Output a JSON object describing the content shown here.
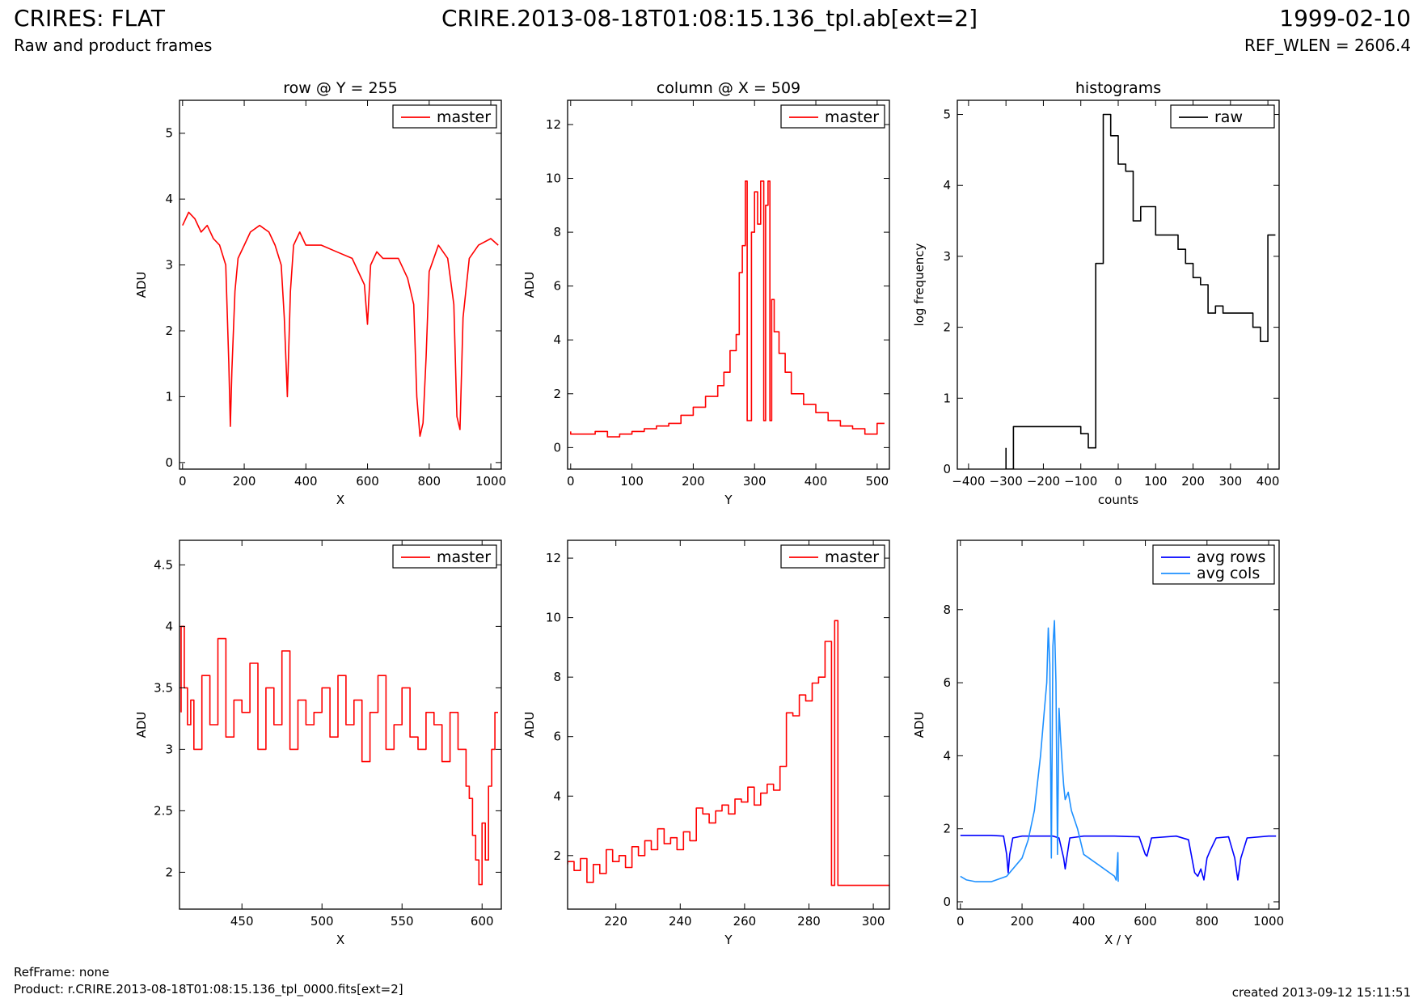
{
  "header": {
    "left_title": "CRIRES: FLAT",
    "subtitle": "Raw and product frames",
    "center_title": "CRIRE.2013-08-18T01:08:15.136_tpl.ab[ext=2]",
    "right_title": "1999-02-10",
    "ref_wlen": "REF_WLEN = 2606.4"
  },
  "footer": {
    "ref_frame": "RefFrame: none",
    "product": "Product: r.CRIRE.2013-08-18T01:08:15.136_tpl_0000.fits[ext=2]",
    "created": "created 2013-09-12 15:11:51"
  },
  "chart_data": [
    {
      "type": "line",
      "title": "row @ Y = 255",
      "xlabel": "X",
      "ylabel": "ADU",
      "xlim": [
        -10,
        1034
      ],
      "ylim": [
        -0.1,
        5.5
      ],
      "xticks": [
        0,
        200,
        400,
        600,
        800,
        1000
      ],
      "yticks": [
        0,
        1,
        2,
        3,
        4,
        5
      ],
      "legend": "top-right",
      "series": [
        {
          "name": "master",
          "color": "#ff0000",
          "style": "line",
          "x": [
            0,
            20,
            40,
            60,
            80,
            100,
            120,
            140,
            150,
            155,
            160,
            170,
            180,
            200,
            220,
            250,
            280,
            300,
            320,
            330,
            340,
            350,
            360,
            380,
            400,
            450,
            500,
            550,
            590,
            600,
            610,
            630,
            650,
            700,
            730,
            750,
            760,
            770,
            780,
            790,
            800,
            830,
            860,
            880,
            890,
            900,
            910,
            930,
            960,
            1000,
            1024
          ],
          "y": [
            3.6,
            3.8,
            3.7,
            3.5,
            3.6,
            3.4,
            3.3,
            3.0,
            1.5,
            0.55,
            1.4,
            2.6,
            3.1,
            3.3,
            3.5,
            3.6,
            3.5,
            3.3,
            3.0,
            2.2,
            1.0,
            2.6,
            3.3,
            3.5,
            3.3,
            3.3,
            3.2,
            3.1,
            2.7,
            2.1,
            3.0,
            3.2,
            3.1,
            3.1,
            2.8,
            2.4,
            1.0,
            0.4,
            0.6,
            1.6,
            2.9,
            3.3,
            3.1,
            2.4,
            0.7,
            0.5,
            2.2,
            3.1,
            3.3,
            3.4,
            3.3
          ]
        }
      ]
    },
    {
      "type": "line",
      "title": "column @ X = 509",
      "xlabel": "Y",
      "ylabel": "ADU",
      "xlim": [
        -5,
        520
      ],
      "ylim": [
        -0.8,
        12.9
      ],
      "xticks": [
        0,
        100,
        200,
        300,
        400,
        500
      ],
      "yticks": [
        0,
        2,
        4,
        6,
        8,
        10,
        12
      ],
      "legend": "top-right",
      "series": [
        {
          "name": "master",
          "color": "#ff0000",
          "style": "step",
          "x": [
            0,
            20,
            40,
            60,
            80,
            100,
            120,
            140,
            160,
            180,
            200,
            220,
            240,
            250,
            260,
            270,
            275,
            280,
            285,
            288,
            290,
            295,
            300,
            305,
            310,
            315,
            318,
            322,
            325,
            328,
            332,
            340,
            350,
            360,
            380,
            400,
            420,
            440,
            460,
            480,
            500,
            512
          ],
          "y": [
            0.6,
            0.5,
            0.5,
            0.6,
            0.4,
            0.5,
            0.6,
            0.7,
            0.8,
            0.9,
            1.2,
            1.5,
            1.9,
            2.3,
            2.8,
            3.6,
            4.2,
            6.5,
            7.5,
            9.9,
            1.0,
            1.0,
            8.0,
            9.5,
            8.3,
            9.9,
            1.0,
            9.0,
            9.9,
            1.0,
            5.5,
            4.3,
            3.5,
            2.8,
            2.0,
            1.6,
            1.3,
            1.0,
            0.8,
            0.7,
            0.5,
            0.9
          ]
        }
      ]
    },
    {
      "type": "line",
      "title": "histograms",
      "xlabel": "counts",
      "ylabel": "log frequency",
      "xlim": [
        -430,
        430
      ],
      "ylim": [
        0,
        5.2
      ],
      "xticks": [
        -400,
        -300,
        -200,
        -100,
        0,
        100,
        200,
        300,
        400
      ],
      "yticks": [
        0,
        1,
        2,
        3,
        4,
        5
      ],
      "legend": "top-right",
      "series": [
        {
          "name": "raw",
          "color": "#000000",
          "style": "step",
          "x": [
            -300,
            -280,
            -100,
            -80,
            -60,
            -40,
            -20,
            0,
            20,
            40,
            60,
            80,
            100,
            140,
            160,
            180,
            200,
            220,
            240,
            260,
            280,
            300,
            340,
            360,
            380,
            400,
            420
          ],
          "y": [
            0.3,
            0,
            0.6,
            0.5,
            0.3,
            2.9,
            5.0,
            4.7,
            4.3,
            4.2,
            3.5,
            3.7,
            3.7,
            3.3,
            3.3,
            3.1,
            2.9,
            2.7,
            2.6,
            2.2,
            2.3,
            2.2,
            2.2,
            2.2,
            2.0,
            1.8,
            3.3
          ]
        }
      ]
    },
    {
      "type": "line",
      "title": "",
      "xlabel": "X",
      "ylabel": "ADU",
      "xlim": [
        411,
        612
      ],
      "ylim": [
        1.7,
        4.7
      ],
      "xticks": [
        450,
        500,
        550,
        600
      ],
      "yticks": [
        2.0,
        2.5,
        3.0,
        3.5,
        4.0,
        4.5
      ],
      "legend": "top-right",
      "series": [
        {
          "name": "master",
          "color": "#ff0000",
          "style": "step",
          "x": [
            412,
            414,
            416,
            418,
            420,
            425,
            430,
            435,
            440,
            445,
            450,
            455,
            460,
            465,
            470,
            475,
            480,
            485,
            490,
            495,
            500,
            505,
            510,
            515,
            520,
            525,
            530,
            535,
            540,
            545,
            550,
            555,
            560,
            565,
            570,
            575,
            580,
            585,
            590,
            592,
            594,
            596,
            598,
            600,
            602,
            604,
            606,
            608,
            610
          ],
          "y": [
            3.3,
            4.0,
            3.5,
            3.2,
            3.4,
            3.0,
            3.6,
            3.2,
            3.9,
            3.1,
            3.4,
            3.3,
            3.7,
            3.0,
            3.5,
            3.2,
            3.8,
            3.0,
            3.4,
            3.2,
            3.3,
            3.5,
            3.1,
            3.6,
            3.2,
            3.4,
            2.9,
            3.3,
            3.6,
            3.0,
            3.2,
            3.5,
            3.1,
            3.0,
            3.3,
            3.2,
            2.9,
            3.3,
            3.0,
            2.7,
            2.6,
            2.3,
            2.1,
            1.9,
            2.4,
            2.1,
            2.7,
            3.0,
            3.3
          ]
        }
      ]
    },
    {
      "type": "line",
      "title": "",
      "xlabel": "Y",
      "ylabel": "ADU",
      "xlim": [
        205,
        305
      ],
      "ylim": [
        0.2,
        12.6
      ],
      "xticks": [
        220,
        240,
        260,
        280,
        300
      ],
      "yticks": [
        2,
        4,
        6,
        8,
        10,
        12
      ],
      "legend": "top-right",
      "series": [
        {
          "name": "master",
          "color": "#ff0000",
          "style": "step",
          "x": [
            205,
            207,
            209,
            211,
            213,
            215,
            217,
            219,
            221,
            223,
            225,
            227,
            229,
            231,
            233,
            235,
            237,
            239,
            241,
            243,
            245,
            247,
            249,
            251,
            253,
            255,
            257,
            259,
            261,
            263,
            265,
            267,
            269,
            271,
            273,
            275,
            277,
            279,
            281,
            283,
            285,
            287,
            288,
            289,
            290,
            291,
            292,
            294,
            305
          ],
          "y": [
            1.7,
            1.8,
            1.5,
            1.9,
            1.1,
            1.7,
            1.4,
            2.2,
            1.8,
            2.0,
            1.6,
            2.3,
            2.0,
            2.5,
            2.2,
            2.9,
            2.4,
            2.6,
            2.2,
            2.8,
            2.5,
            3.6,
            3.4,
            3.1,
            3.5,
            3.7,
            3.4,
            3.9,
            3.8,
            4.3,
            3.7,
            4.1,
            4.4,
            4.2,
            5.0,
            6.8,
            6.7,
            7.4,
            7.2,
            7.8,
            8.0,
            9.2,
            1.0,
            9.9,
            1.0,
            1.0,
            1.0,
            1.0,
            1.0
          ]
        }
      ]
    },
    {
      "type": "line",
      "title": "",
      "xlabel": "X / Y",
      "ylabel": "ADU",
      "xlim": [
        -10,
        1034
      ],
      "ylim": [
        -0.2,
        9.9
      ],
      "xticks": [
        0,
        200,
        400,
        600,
        800,
        1000
      ],
      "yticks": [
        0,
        2,
        4,
        6,
        8
      ],
      "legend": "top-right",
      "series": [
        {
          "name": "avg rows",
          "color": "#0000ff",
          "style": "line",
          "x": [
            0,
            50,
            100,
            140,
            150,
            155,
            160,
            170,
            200,
            250,
            300,
            320,
            335,
            340,
            345,
            355,
            400,
            500,
            580,
            600,
            605,
            620,
            700,
            740,
            760,
            770,
            780,
            790,
            800,
            810,
            830,
            870,
            890,
            900,
            910,
            930,
            1000,
            1024
          ],
          "y": [
            1.82,
            1.82,
            1.82,
            1.8,
            1.3,
            0.8,
            1.3,
            1.75,
            1.8,
            1.8,
            1.8,
            1.75,
            1.2,
            0.9,
            1.2,
            1.75,
            1.8,
            1.8,
            1.78,
            1.3,
            1.25,
            1.75,
            1.8,
            1.7,
            0.8,
            0.7,
            0.9,
            0.6,
            1.2,
            1.4,
            1.75,
            1.78,
            1.2,
            0.6,
            1.2,
            1.75,
            1.8,
            1.8
          ]
        },
        {
          "name": "avg cols",
          "color": "#1e90ff",
          "style": "line",
          "x": [
            0,
            20,
            50,
            100,
            150,
            200,
            220,
            240,
            260,
            270,
            280,
            285,
            290,
            295,
            300,
            305,
            310,
            315,
            320,
            325,
            330,
            335,
            340,
            350,
            360,
            380,
            400,
            450,
            500,
            505,
            506,
            511,
            512
          ],
          "y": [
            0.7,
            0.6,
            0.55,
            0.55,
            0.7,
            1.2,
            1.7,
            2.5,
            4.0,
            5.0,
            6.0,
            7.5,
            6.5,
            1.2,
            7.0,
            7.7,
            6.0,
            1.3,
            5.3,
            4.5,
            3.8,
            3.2,
            2.8,
            3.0,
            2.5,
            2.0,
            1.3,
            1.0,
            0.7,
            0.6,
            0.6,
            1.35,
            0.55
          ]
        }
      ]
    }
  ]
}
